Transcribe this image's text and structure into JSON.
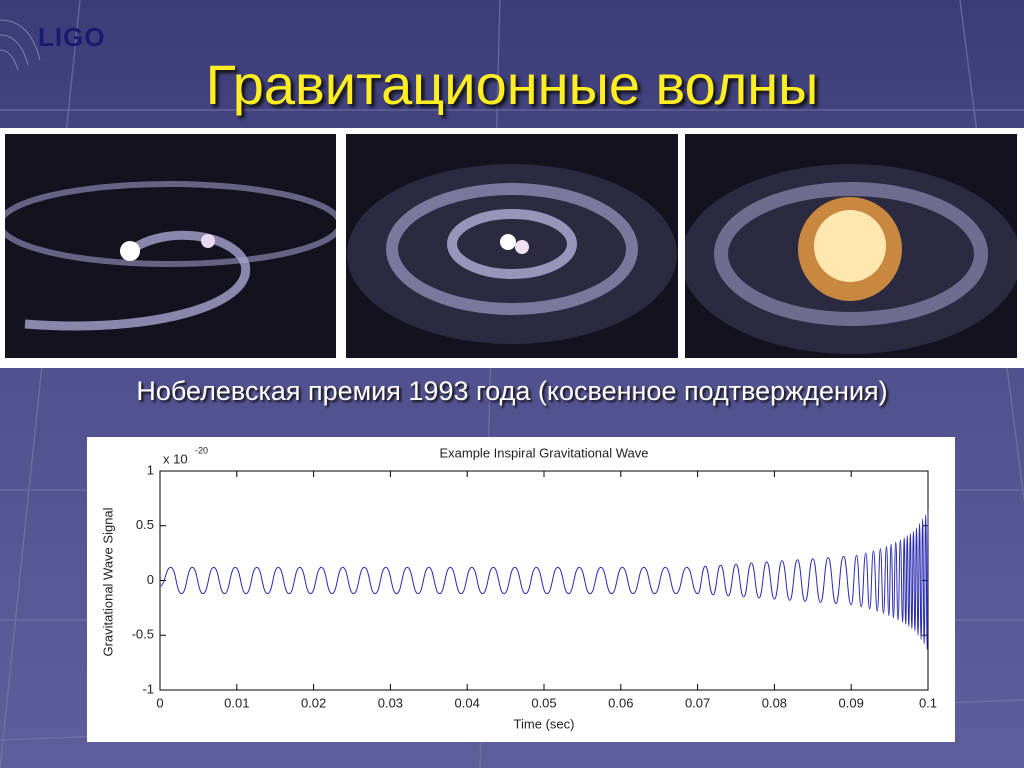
{
  "logo": "LIGO",
  "title": "Гравитационные волны",
  "subtitle": "Нобелевская премия 1993 года (косвенное подтверждения)",
  "chart_data": {
    "type": "line",
    "title": "Example Inspiral Gravitational Wave",
    "xlabel": "Time (sec)",
    "ylabel": "Gravitational Wave Signal",
    "y_multiplier": "x 10",
    "y_multiplier_exponent": "-20",
    "color": "#2b2bb0",
    "xlim": [
      0,
      0.1
    ],
    "ylim": [
      -1,
      1
    ],
    "xticks": [
      0,
      0.01,
      0.02,
      0.03,
      0.04,
      0.05,
      0.06,
      0.07,
      0.08,
      0.09,
      0.1
    ],
    "yticks": [
      -1,
      -0.5,
      0,
      0.5,
      1
    ],
    "x": [
      0,
      0.0014,
      0.0028,
      0.0042,
      0.0056,
      0.007,
      0.0084,
      0.0098,
      0.0112,
      0.0126,
      0.014,
      0.0154,
      0.0168,
      0.0182,
      0.0196,
      0.021,
      0.0224,
      0.0238,
      0.0252,
      0.0266,
      0.028,
      0.0294,
      0.0308,
      0.0322,
      0.0336,
      0.035,
      0.0364,
      0.0378,
      0.0392,
      0.0406,
      0.042,
      0.0434,
      0.0448,
      0.0462,
      0.0476,
      0.049,
      0.0504,
      0.0518,
      0.0532,
      0.0546,
      0.056,
      0.0574,
      0.0588,
      0.0602,
      0.0616,
      0.063,
      0.0644,
      0.0658,
      0.0672,
      0.0686,
      0.07,
      0.071,
      0.072,
      0.073,
      0.074,
      0.075,
      0.076,
      0.077,
      0.078,
      0.079,
      0.08,
      0.081,
      0.082,
      0.083,
      0.084,
      0.085,
      0.086,
      0.087,
      0.088,
      0.089,
      0.09,
      0.0907,
      0.0913,
      0.0919,
      0.0924,
      0.0929,
      0.0934,
      0.0938,
      0.0942,
      0.0946,
      0.0949,
      0.0952,
      0.0955,
      0.0958,
      0.0961,
      0.0964,
      0.0967,
      0.0969,
      0.0971,
      0.0973,
      0.0975,
      0.0977,
      0.0979,
      0.0981,
      0.0983,
      0.0985,
      0.0987,
      0.0989,
      0.0991,
      0.0993,
      0.0995,
      0.0997,
      0.0999,
      0.1
    ],
    "values": [
      -0.05,
      0.12,
      -0.12,
      0.12,
      -0.12,
      0.12,
      -0.12,
      0.12,
      -0.12,
      0.12,
      -0.12,
      0.12,
      -0.12,
      0.12,
      -0.12,
      0.12,
      -0.12,
      0.12,
      -0.12,
      0.12,
      -0.12,
      0.12,
      -0.12,
      0.12,
      -0.12,
      0.12,
      -0.12,
      0.12,
      -0.12,
      0.12,
      -0.12,
      0.12,
      -0.12,
      0.12,
      -0.12,
      0.12,
      -0.12,
      0.12,
      -0.12,
      0.12,
      -0.12,
      0.12,
      -0.12,
      0.12,
      -0.12,
      0.12,
      -0.12,
      0.12,
      -0.12,
      0.12,
      -0.12,
      0.13,
      -0.13,
      0.14,
      -0.14,
      0.15,
      -0.15,
      0.16,
      -0.16,
      0.17,
      -0.17,
      0.18,
      -0.18,
      0.19,
      -0.19,
      0.2,
      -0.2,
      0.21,
      -0.21,
      0.22,
      -0.22,
      0.23,
      -0.24,
      0.25,
      -0.26,
      0.27,
      -0.28,
      0.29,
      -0.3,
      0.31,
      -0.32,
      0.33,
      -0.34,
      0.35,
      -0.36,
      0.37,
      -0.38,
      0.39,
      -0.4,
      0.41,
      -0.42,
      0.43,
      -0.44,
      0.45,
      -0.46,
      0.48,
      -0.5,
      0.52,
      -0.54,
      0.56,
      -0.58,
      0.6,
      -0.63,
      0.65
    ]
  }
}
